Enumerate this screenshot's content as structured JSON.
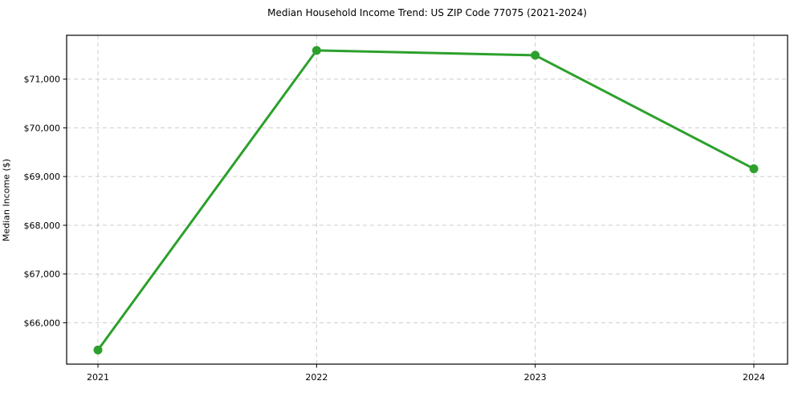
{
  "chart_data": {
    "type": "line",
    "title": "Median Household Income Trend: US ZIP Code 77075 (2021-2024)",
    "xlabel": "",
    "ylabel": "Median Income ($)",
    "x": [
      2021,
      2022,
      2023,
      2024
    ],
    "series": [
      {
        "name": "Median Household Income",
        "values": [
          65440,
          71590,
          71490,
          69160
        ]
      }
    ],
    "yticks": [
      66000,
      67000,
      68000,
      69000,
      70000,
      71000
    ],
    "ytick_labels": [
      "$66,000",
      "$67,000",
      "$68,000",
      "$69,000",
      "$70,000",
      "$71,000"
    ],
    "xtick_labels": [
      "2021",
      "2022",
      "2023",
      "2024"
    ],
    "ylim": [
      65150,
      71900
    ],
    "grid": true,
    "grid_style": "dashed",
    "legend": false,
    "colors": {
      "line": "#2ca02c",
      "marker": "#2ca02c",
      "grid": "#cccccc",
      "spine": "#000000",
      "background": "#ffffff"
    }
  }
}
